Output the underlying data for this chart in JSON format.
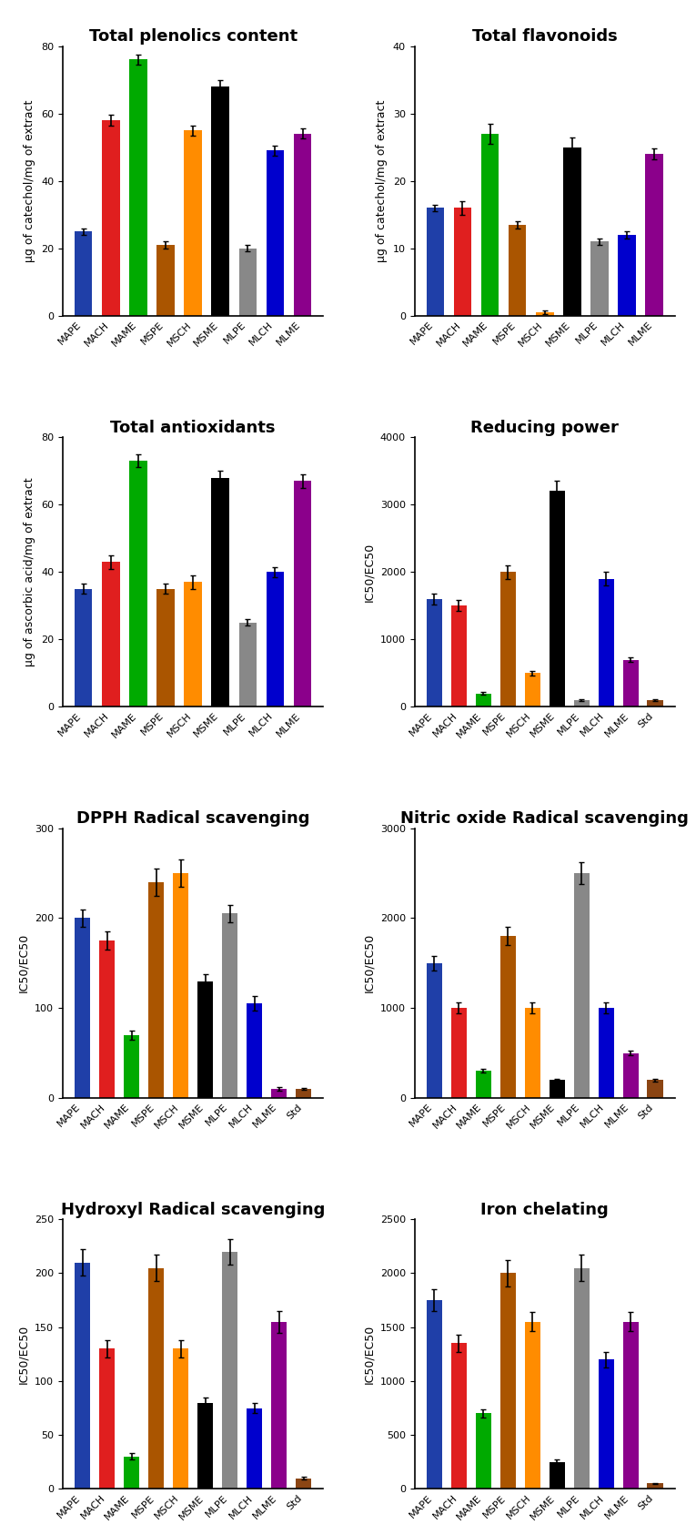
{
  "charts": [
    {
      "title": "Total plenolics content",
      "ylabel": "µg of catechol/mg of extract",
      "ylim": [
        0,
        80
      ],
      "yticks": [
        0,
        20,
        40,
        60,
        80
      ],
      "categories": [
        "MAPE",
        "MACH",
        "MAME",
        "MSPE",
        "MSCH",
        "MSME",
        "MLPE",
        "MLCH",
        "MLME"
      ],
      "values": [
        25,
        58,
        76,
        21,
        55,
        68,
        20,
        49,
        54
      ],
      "errors": [
        1,
        1.5,
        1.5,
        1,
        1.5,
        2,
        1,
        1.5,
        1.5
      ],
      "colors": [
        "#1f3fa8",
        "#e01f1f",
        "#00aa00",
        "#aa5500",
        "#ff8c00",
        "#000000",
        "#888888",
        "#0000cd",
        "#8b008b"
      ]
    },
    {
      "title": "Total flavonoids",
      "ylabel": "µg of catechol/mg of extract",
      "ylim": [
        0,
        40
      ],
      "yticks": [
        0,
        10,
        20,
        30,
        40
      ],
      "categories": [
        "MAPE",
        "MACH",
        "MAME",
        "MSPE",
        "MSCH",
        "MSME",
        "MLPE",
        "MLCH",
        "MLME"
      ],
      "values": [
        16,
        16,
        27,
        13.5,
        0.5,
        25,
        11,
        12,
        24
      ],
      "errors": [
        0.5,
        1,
        1.5,
        0.5,
        0.3,
        1.5,
        0.5,
        0.5,
        0.8
      ],
      "colors": [
        "#1f3fa8",
        "#e01f1f",
        "#00aa00",
        "#aa5500",
        "#ff8c00",
        "#000000",
        "#888888",
        "#0000cd",
        "#8b008b"
      ]
    },
    {
      "title": "Total antioxidants",
      "ylabel": "µg of ascorbic acid/mg of extract",
      "ylim": [
        0,
        80
      ],
      "yticks": [
        0,
        20,
        40,
        60,
        80
      ],
      "categories": [
        "MAPE",
        "MACH",
        "MAME",
        "MSPE",
        "MSCH",
        "MSME",
        "MLPE",
        "MLCH",
        "MLME"
      ],
      "values": [
        35,
        43,
        73,
        35,
        37,
        68,
        25,
        40,
        67
      ],
      "errors": [
        1.5,
        2,
        2,
        1.5,
        2,
        2,
        1,
        1.5,
        2
      ],
      "colors": [
        "#1f3fa8",
        "#e01f1f",
        "#00aa00",
        "#aa5500",
        "#ff8c00",
        "#000000",
        "#888888",
        "#0000cd",
        "#8b008b"
      ]
    },
    {
      "title": "Reducing power",
      "ylabel": "IC50/EC50",
      "ylim": [
        0,
        4000
      ],
      "yticks": [
        0,
        1000,
        2000,
        3000,
        4000
      ],
      "categories": [
        "MAPE",
        "MACH",
        "MAME",
        "MSPE",
        "MSCH",
        "MSME",
        "MLPE",
        "MLCH",
        "MLME",
        "Std"
      ],
      "values": [
        1600,
        1500,
        200,
        2000,
        500,
        3200,
        100,
        1900,
        700,
        100
      ],
      "errors": [
        80,
        80,
        20,
        100,
        30,
        150,
        10,
        100,
        40,
        10
      ],
      "colors": [
        "#1f3fa8",
        "#e01f1f",
        "#00aa00",
        "#aa5500",
        "#ff8c00",
        "#000000",
        "#888888",
        "#0000cd",
        "#8b008b",
        "#8b4513"
      ]
    },
    {
      "title": "DPPH Radical scavenging",
      "ylabel": "IC50/EC50",
      "ylim": [
        0,
        300
      ],
      "yticks": [
        0,
        100,
        200,
        300
      ],
      "categories": [
        "MAPE",
        "MACH",
        "MAME",
        "MSPE",
        "MSCH",
        "MSME",
        "MLPE",
        "MLCH",
        "MLME",
        "Std"
      ],
      "values": [
        200,
        175,
        70,
        240,
        250,
        130,
        205,
        105,
        10,
        10
      ],
      "errors": [
        10,
        10,
        5,
        15,
        15,
        8,
        10,
        8,
        2,
        1
      ],
      "colors": [
        "#1f3fa8",
        "#e01f1f",
        "#00aa00",
        "#aa5500",
        "#ff8c00",
        "#000000",
        "#888888",
        "#0000cd",
        "#8b008b",
        "#8b4513"
      ]
    },
    {
      "title": "Nitric oxide Radical scavenging",
      "ylabel": "IC50/EC50",
      "ylim": [
        0,
        3000
      ],
      "yticks": [
        0,
        1000,
        2000,
        3000
      ],
      "categories": [
        "MAPE",
        "MACH",
        "MAME",
        "MSPE",
        "MSCH",
        "MSME",
        "MLPE",
        "MLCH",
        "MLME",
        "Std"
      ],
      "values": [
        1500,
        1000,
        300,
        1800,
        1000,
        200,
        2500,
        1000,
        500,
        200
      ],
      "errors": [
        80,
        60,
        20,
        100,
        60,
        15,
        120,
        60,
        30,
        15
      ],
      "colors": [
        "#1f3fa8",
        "#e01f1f",
        "#00aa00",
        "#aa5500",
        "#ff8c00",
        "#000000",
        "#888888",
        "#0000cd",
        "#8b008b",
        "#8b4513"
      ]
    },
    {
      "title": "Hydroxyl Radical scavenging",
      "ylabel": "IC50/EC50",
      "ylim": [
        0,
        250
      ],
      "yticks": [
        0,
        50,
        100,
        150,
        200,
        250
      ],
      "categories": [
        "MAPE",
        "MACH",
        "MAME",
        "MSPE",
        "MSCH",
        "MSME",
        "MLPE",
        "MLCH",
        "MLME",
        "Std"
      ],
      "values": [
        210,
        130,
        30,
        205,
        130,
        80,
        220,
        75,
        155,
        10
      ],
      "errors": [
        12,
        8,
        3,
        12,
        8,
        5,
        12,
        5,
        10,
        1
      ],
      "colors": [
        "#1f3fa8",
        "#e01f1f",
        "#00aa00",
        "#aa5500",
        "#ff8c00",
        "#000000",
        "#888888",
        "#0000cd",
        "#8b008b",
        "#8b4513"
      ]
    },
    {
      "title": "Iron chelating",
      "ylabel": "IC50/EC50",
      "ylim": [
        0,
        2500
      ],
      "yticks": [
        0,
        500,
        1000,
        1500,
        2000,
        2500
      ],
      "categories": [
        "MAPE",
        "MACH",
        "MAME",
        "MSPE",
        "MSCH",
        "MSME",
        "MLPE",
        "MLCH",
        "MLME",
        "Std"
      ],
      "values": [
        1750,
        1350,
        700,
        2000,
        1550,
        250,
        2050,
        1200,
        1550,
        50
      ],
      "errors": [
        100,
        80,
        40,
        120,
        90,
        20,
        120,
        70,
        90,
        5
      ],
      "colors": [
        "#1f3fa8",
        "#e01f1f",
        "#00aa00",
        "#aa5500",
        "#ff8c00",
        "#000000",
        "#888888",
        "#0000cd",
        "#8b008b",
        "#8b4513"
      ]
    }
  ],
  "title_fontsize": 13,
  "label_fontsize": 9,
  "tick_fontsize": 8,
  "bar_width": 0.65
}
